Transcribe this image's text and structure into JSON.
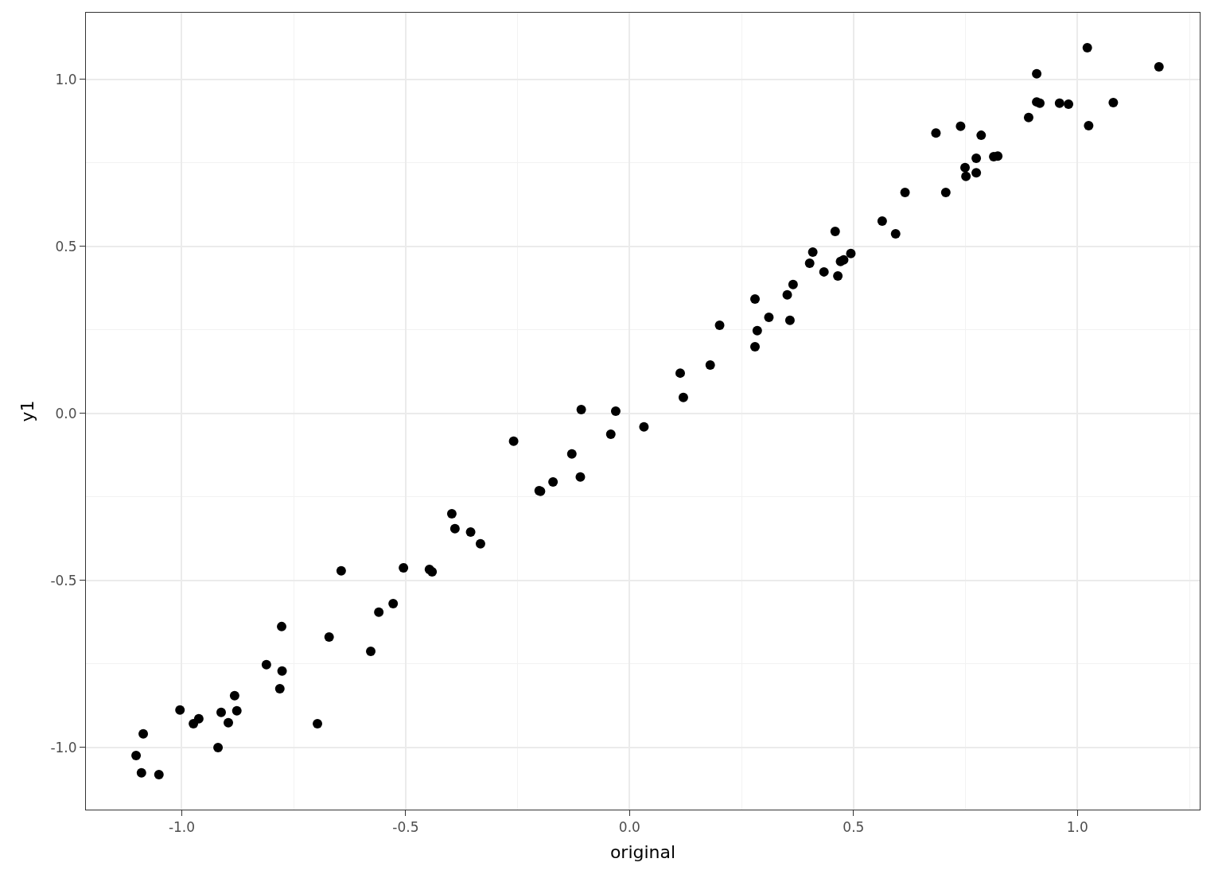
{
  "chart_data": {
    "type": "scatter",
    "xlabel": "original",
    "ylabel": "y1",
    "x": [
      -1.102,
      -1.09,
      -1.086,
      -1.051,
      -1.004,
      -0.974,
      -0.962,
      -0.919,
      -0.912,
      -0.896,
      -0.882,
      -0.877,
      -0.811,
      -0.781,
      -0.777,
      -0.776,
      -0.697,
      -0.671,
      -0.644,
      -0.578,
      -0.56,
      -0.528,
      -0.505,
      -0.447,
      -0.441,
      -0.397,
      -0.39,
      -0.355,
      -0.333,
      -0.259,
      -0.202,
      -0.199,
      -0.171,
      -0.129,
      -0.11,
      -0.108,
      -0.042,
      -0.031,
      0.032,
      0.113,
      0.12,
      0.18,
      0.201,
      0.28,
      0.28,
      0.285,
      0.311,
      0.352,
      0.358,
      0.365,
      0.402,
      0.409,
      0.434,
      0.459,
      0.465,
      0.471,
      0.478,
      0.494,
      0.564,
      0.594,
      0.615,
      0.684,
      0.706,
      0.739,
      0.749,
      0.751,
      0.774,
      0.774,
      0.785,
      0.813,
      0.822,
      0.891,
      0.909,
      0.909,
      0.916,
      0.96,
      0.98,
      1.022,
      1.025,
      1.08,
      1.182
    ],
    "values": [
      -1.024,
      -1.076,
      -0.959,
      -1.081,
      -0.888,
      -0.929,
      -0.914,
      -1.0,
      -0.895,
      -0.926,
      -0.845,
      -0.89,
      -0.752,
      -0.824,
      -0.638,
      -0.771,
      -0.929,
      -0.669,
      -0.471,
      -0.712,
      -0.595,
      -0.569,
      -0.462,
      -0.467,
      -0.474,
      -0.3,
      -0.345,
      -0.355,
      -0.39,
      -0.083,
      -0.231,
      -0.233,
      -0.205,
      -0.121,
      -0.19,
      0.012,
      -0.062,
      0.007,
      -0.04,
      0.121,
      0.048,
      0.145,
      0.264,
      0.2,
      0.343,
      0.248,
      0.288,
      0.355,
      0.279,
      0.386,
      0.45,
      0.483,
      0.424,
      0.545,
      0.412,
      0.455,
      0.46,
      0.479,
      0.576,
      0.538,
      0.662,
      0.84,
      0.662,
      0.86,
      0.736,
      0.71,
      0.764,
      0.721,
      0.833,
      0.769,
      0.771,
      0.886,
      1.017,
      0.933,
      0.929,
      0.929,
      0.926,
      1.095,
      0.862,
      0.931,
      1.038
    ],
    "color": "#000000",
    "marker": "circle",
    "xlim": [
      -1.214,
      1.273
    ],
    "ylim": [
      -1.186,
      1.2
    ],
    "xticks": [
      {
        "value": -1,
        "label": "-1.0"
      },
      {
        "value": -0.75,
        "label": null
      },
      {
        "value": -0.5,
        "label": "-0.5"
      },
      {
        "value": -0.25,
        "label": null
      },
      {
        "value": 0,
        "label": "0.0"
      },
      {
        "value": 0.25,
        "label": null
      },
      {
        "value": 0.5,
        "label": "0.5"
      },
      {
        "value": 0.75,
        "label": null
      },
      {
        "value": 1,
        "label": "1.0"
      },
      {
        "value": 1.25,
        "label": null
      }
    ],
    "yticks": [
      {
        "value": -1,
        "label": "-1.0"
      },
      {
        "value": -0.75,
        "label": null
      },
      {
        "value": -0.5,
        "label": "-0.5"
      },
      {
        "value": -0.25,
        "label": null
      },
      {
        "value": 0,
        "label": "0.0"
      },
      {
        "value": 0.25,
        "label": null
      },
      {
        "value": 0.5,
        "label": "0.5"
      },
      {
        "value": 0.75,
        "label": null
      },
      {
        "value": 1,
        "label": "1.0"
      }
    ],
    "grid": true
  }
}
